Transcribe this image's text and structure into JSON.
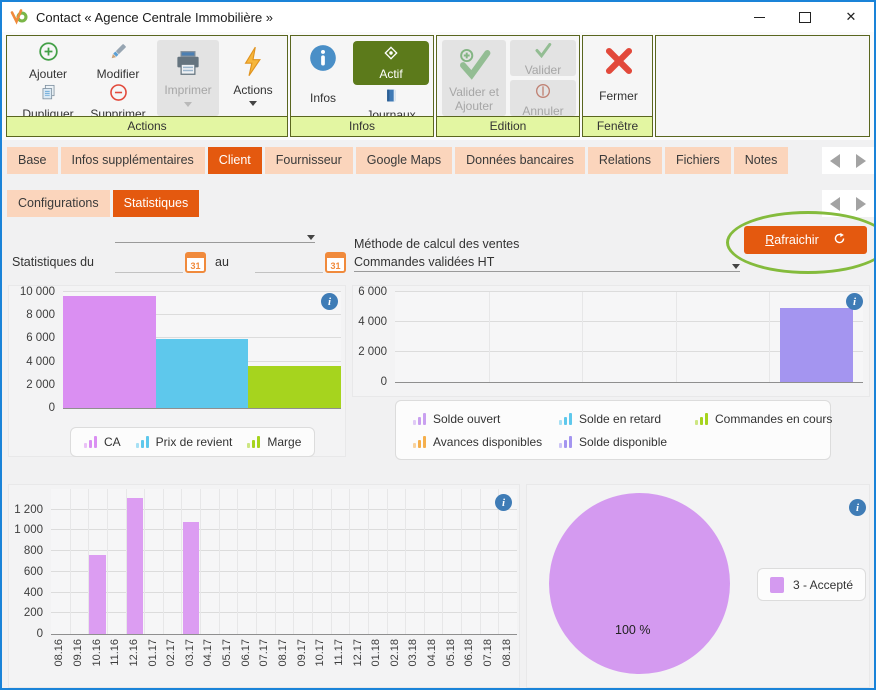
{
  "window": {
    "title": "Contact « Agence Centrale Immobilière »"
  },
  "ribbon": {
    "groups": {
      "actions": "Actions",
      "infos": "Infos",
      "edition": "Edition",
      "fenetre": "Fenêtre"
    },
    "buttons": {
      "ajouter": "Ajouter",
      "modifier": "Modifier",
      "imprimer": "Imprimer",
      "actions": "Actions",
      "dupliquer": "Dupliquer",
      "supprimer": "Supprimer",
      "infos": "Infos",
      "actif": "Actif",
      "journaux": "Journaux",
      "valider_et_ajouter_l1": "Valider et",
      "valider_et_ajouter_l2": "Ajouter",
      "valider": "Valider",
      "annuler": "Annuler",
      "fermer": "Fermer"
    }
  },
  "tabs": {
    "main": [
      {
        "label": "Base",
        "active": false
      },
      {
        "label": "Infos supplémentaires",
        "active": false
      },
      {
        "label": "Client",
        "active": true
      },
      {
        "label": "Fournisseur",
        "active": false
      },
      {
        "label": "Google Maps",
        "active": false
      },
      {
        "label": "Données bancaires",
        "active": false
      },
      {
        "label": "Relations",
        "active": false
      },
      {
        "label": "Fichiers",
        "active": false
      },
      {
        "label": "Notes",
        "active": false
      }
    ],
    "sub": [
      {
        "label": "Configurations",
        "active": false
      },
      {
        "label": "Statistiques",
        "active": true
      }
    ]
  },
  "filters": {
    "period_value": "",
    "stats_label": "Statistiques du",
    "au_label": "au",
    "date_from": "",
    "date_to": "",
    "method_label": "Méthode de calcul des ventes",
    "method_value": "Commandes validées HT",
    "refresh_label_accel": "R",
    "refresh_label_rest": "afraichir"
  },
  "icons": {
    "app_logo": "vd-logo",
    "add": "plus-circle",
    "edit": "pencil",
    "print": "printer",
    "actions": "lightning-bolt",
    "duplicate": "copy-pages",
    "delete": "minus-circle",
    "info": "info-circle",
    "active": "diamond-target",
    "journals": "book",
    "validate": "check",
    "validate_add": "check-plus",
    "cancel": "slash-circle",
    "close_window_group": "red-x",
    "refresh": "circular-arrow",
    "calendar": "calendar-31",
    "dropdown": "triangle-down",
    "tab_prev": "triangle-left",
    "tab_next": "triangle-right"
  },
  "colors": {
    "accent_orange": "#e4590f",
    "tab_inactive": "#fbd5bc",
    "ribbon_caption": "#e3f6a2",
    "ribbon_border": "#5a661f",
    "window_border": "#1a83d8",
    "annotation_green": "#84bb3c",
    "info_icon_blue": "#3f7cb6",
    "actif_button_green": "#5c7a1b",
    "disabled_gray": "#e3e3e3"
  },
  "chart_data": [
    {
      "type": "bar",
      "name": "ventes",
      "categories": [
        "CA",
        "Prix de revient",
        "Marge"
      ],
      "values": [
        9650,
        5950,
        3600
      ],
      "colors": [
        "#da8ff2",
        "#5ec8ec",
        "#a6d41e"
      ],
      "ylim": [
        0,
        10000
      ],
      "yticks": [
        0,
        2000,
        4000,
        6000,
        8000,
        10000
      ],
      "legend": [
        {
          "label": "CA",
          "color": "#da8ff2"
        },
        {
          "label": "Prix de revient",
          "color": "#5ec8ec"
        },
        {
          "label": "Marge",
          "color": "#a6d41e"
        }
      ],
      "legend_position": "bottom"
    },
    {
      "type": "bar",
      "name": "soldes",
      "categories": [
        "Solde ouvert",
        "Solde en retard",
        "Commandes en cours",
        "Avances disponibles",
        "Solde disponible"
      ],
      "values": [
        0,
        0,
        0,
        0,
        4950
      ],
      "colors": [
        "#c9a0f0",
        "#5ec8ec",
        "#a6d41e",
        "#f5af4c",
        "#a495f0"
      ],
      "ylim": [
        0,
        6000
      ],
      "yticks": [
        0,
        2000,
        4000,
        6000
      ],
      "legend": [
        {
          "label": "Solde ouvert",
          "color": "#c9a0f0"
        },
        {
          "label": "Solde en retard",
          "color": "#5ec8ec"
        },
        {
          "label": "Commandes en cours",
          "color": "#a6d41e"
        },
        {
          "label": "Avances disponibles",
          "color": "#f5af4c"
        },
        {
          "label": "Solde disponible",
          "color": "#a495f0"
        }
      ],
      "legend_position": "bottom"
    },
    {
      "type": "bar",
      "name": "ca-mensuel",
      "categories": [
        "08.16",
        "09.16",
        "10.16",
        "11.16",
        "12.16",
        "01.17",
        "02.17",
        "03.17",
        "04.17",
        "05.17",
        "06.17",
        "07.17",
        "08.17",
        "09.17",
        "10.17",
        "11.17",
        "12.17",
        "01.18",
        "02.18",
        "03.18",
        "04.18",
        "05.18",
        "06.18",
        "07.18",
        "08.18"
      ],
      "values": [
        0,
        0,
        760,
        0,
        1310,
        0,
        0,
        1080,
        0,
        0,
        0,
        0,
        0,
        0,
        0,
        0,
        0,
        0,
        0,
        0,
        0,
        0,
        0,
        0,
        0
      ],
      "bar_color": "#dc9df2",
      "ylim": [
        0,
        1400
      ],
      "yticks": [
        0,
        200,
        400,
        600,
        800,
        1000,
        1200
      ]
    },
    {
      "type": "pie",
      "name": "statuts-devis",
      "slices": [
        {
          "label": "3 - Accepté",
          "value": 100,
          "color": "#d49af0"
        }
      ],
      "center_label": "100 %",
      "legend_position": "right"
    }
  ]
}
